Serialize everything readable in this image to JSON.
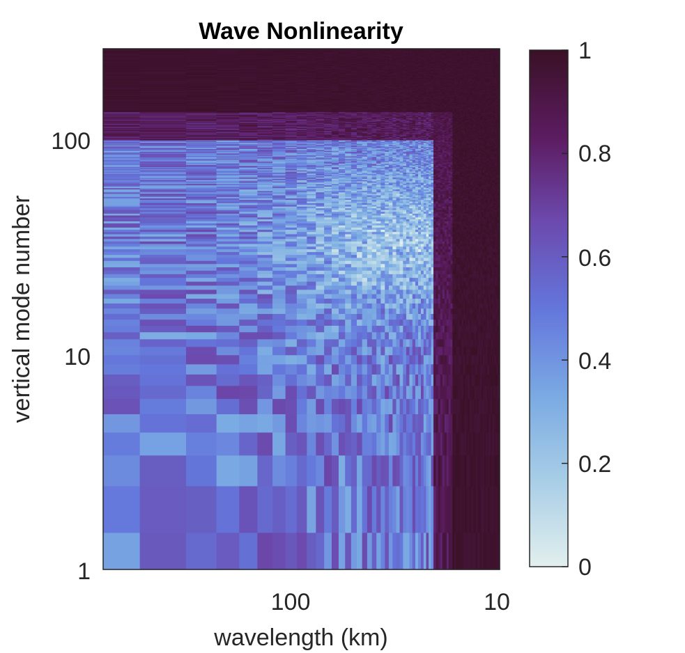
{
  "chart_data": {
    "type": "heatmap",
    "title": "Wave Nonlinearity",
    "xlabel": "wavelength (km)",
    "ylabel": "vertical mode number",
    "x_scale": "log",
    "x_direction": "reversed",
    "x_range_km": [
      800,
      10
    ],
    "x_ticks": [
      100,
      10
    ],
    "x_tick_labels": [
      "100",
      "10"
    ],
    "y_scale": "log",
    "y_range": [
      1,
      300
    ],
    "y_ticks": [
      1,
      10,
      100
    ],
    "y_tick_labels": [
      "1",
      "10",
      "100"
    ],
    "colorbar": {
      "range": [
        0,
        1
      ],
      "ticks": [
        0,
        0.2,
        0.4,
        0.6,
        0.8,
        1
      ],
      "tick_labels": [
        "0",
        "0.2",
        "0.4",
        "0.6",
        "0.8",
        "1"
      ],
      "colormap_stops": [
        "#e2efee",
        "#a7cde6",
        "#7aaae3",
        "#6476db",
        "#6c49ad",
        "#5c1c61",
        "#3a1126"
      ]
    },
    "description_values": {
      "high_mode_saturation_above_mode": 150,
      "short_wavelength_saturation_below_km": 17,
      "minimum_region_mode_range": [
        20,
        60
      ],
      "minimum_region_wavelength_km": [
        20,
        40
      ],
      "minimum_value": 0.15
    }
  }
}
